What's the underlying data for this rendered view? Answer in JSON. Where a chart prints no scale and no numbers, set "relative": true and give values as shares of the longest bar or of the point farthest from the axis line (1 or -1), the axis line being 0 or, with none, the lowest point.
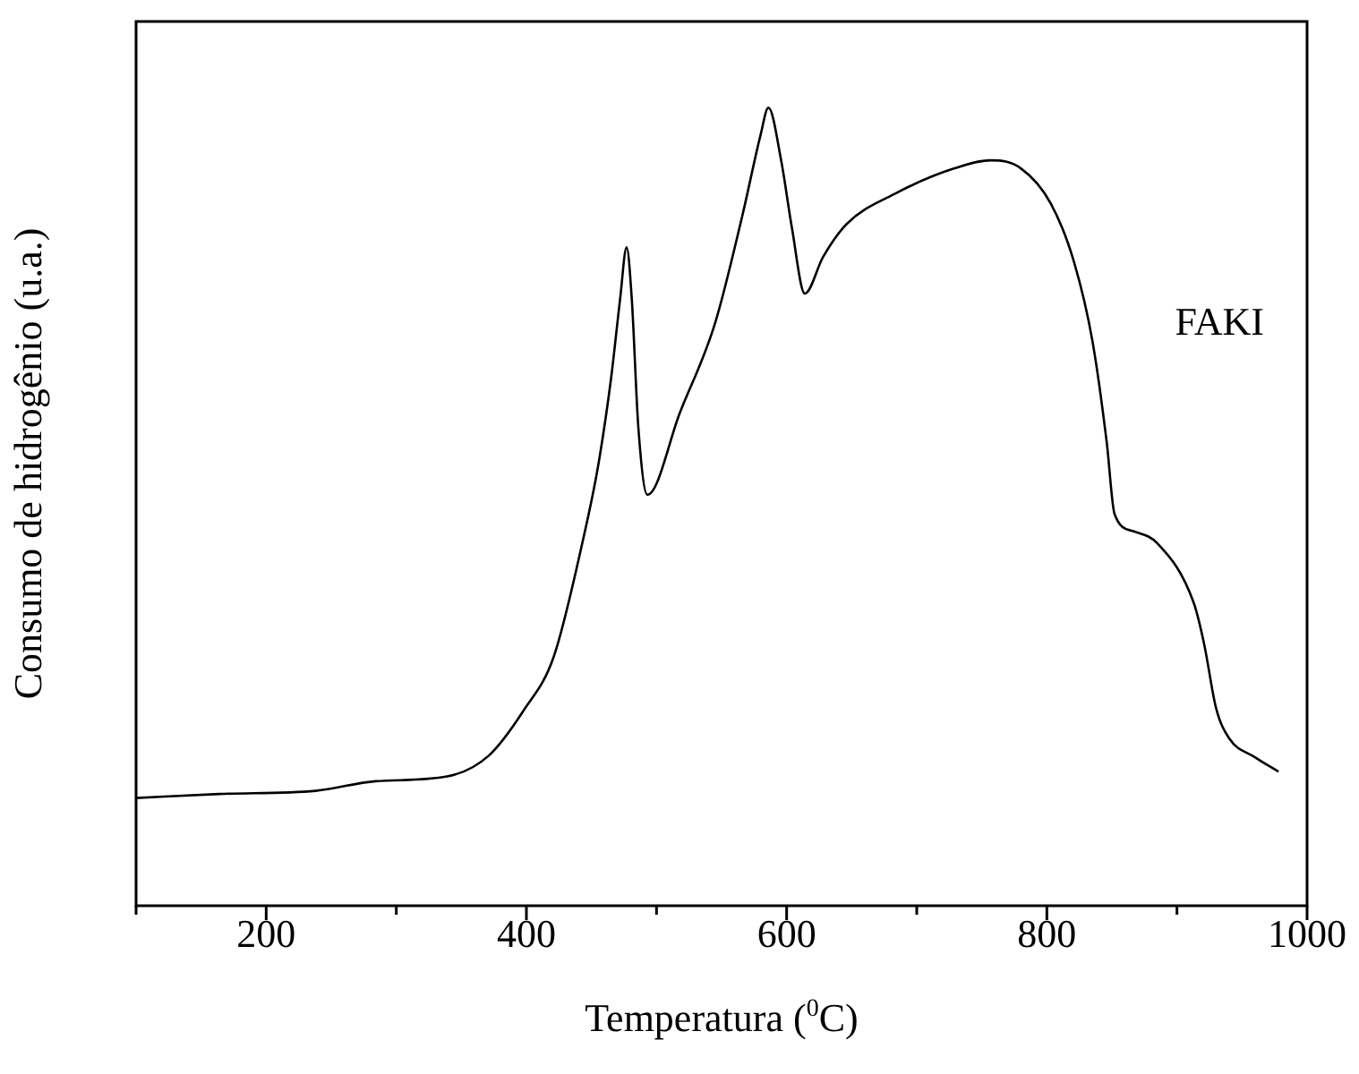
{
  "chart_data": {
    "type": "line",
    "xlabel": "Temperatura ($^{0}$C)",
    "ylabel": "Consumo de hidrogênio (u.a.)",
    "relative": true,
    "xlim": [
      100,
      1000
    ],
    "xticks": [
      {
        "value": 100,
        "label": null
      },
      200,
      {
        "value": 300,
        "label": null
      },
      400,
      {
        "value": 500,
        "label": null
      },
      600,
      {
        "value": 700,
        "label": null
      },
      800,
      {
        "value": 900,
        "label": null
      },
      1000
    ],
    "legend": false,
    "marker": "none",
    "line_style": "solid",
    "series": [
      {
        "name": "FAKI",
        "color": "#000000",
        "x": [
          100,
          164,
          238,
          284,
          339,
          371,
          398,
          421,
          444,
          455,
          465,
          472,
          477,
          481,
          486,
          493,
          518,
          545,
          566,
          580,
          586,
          596,
          604,
          614,
          628,
          646,
          683,
          729,
          757,
          780,
          803,
          821,
          835,
          846,
          852,
          867,
          885,
          913,
          921,
          930,
          940,
          960,
          978
        ],
        "values": [
          0.135,
          0.14,
          0.144,
          0.156,
          0.162,
          0.188,
          0.245,
          0.312,
          0.462,
          0.55,
          0.66,
          0.76,
          0.825,
          0.76,
          0.6,
          0.515,
          0.618,
          0.73,
          0.865,
          0.966,
          1.0,
          0.932,
          0.85,
          0.767,
          0.813,
          0.854,
          0.892,
          0.924,
          0.934,
          0.924,
          0.88,
          0.806,
          0.708,
          0.581,
          0.491,
          0.469,
          0.454,
          0.379,
          0.327,
          0.248,
          0.21,
          0.186,
          0.168
        ]
      }
    ]
  }
}
